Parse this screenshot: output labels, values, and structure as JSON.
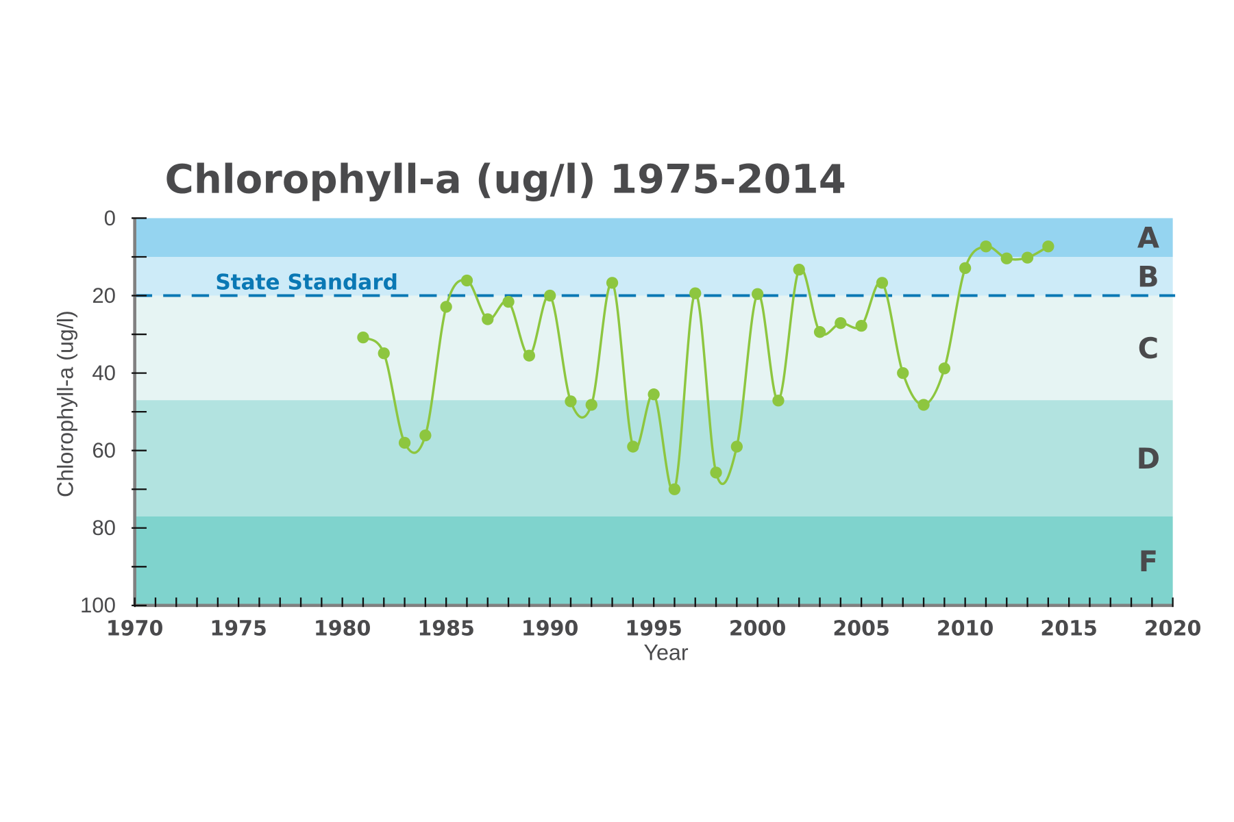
{
  "chart_data": {
    "type": "line",
    "title": "Chlorophyll-a (ug/l) 1975-2014",
    "xlabel": "Year",
    "ylabel": "Chlorophyll-a (ug/l)",
    "xlim": [
      1970,
      2020
    ],
    "ylim": [
      0,
      100
    ],
    "y_inverted": true,
    "x_ticks": [
      1970,
      1975,
      1980,
      1985,
      1990,
      1995,
      2000,
      2005,
      2010,
      2015,
      2020
    ],
    "y_ticks": [
      0,
      20,
      40,
      60,
      80,
      100
    ],
    "grid": false,
    "line_color": "#8dc63f",
    "grade_bands": [
      {
        "label": "A",
        "from": 0,
        "to": 10,
        "color": "#95d4f0"
      },
      {
        "label": "B",
        "from": 10,
        "to": 20,
        "color": "#cdebf8"
      },
      {
        "label": "C",
        "from": 20,
        "to": 47,
        "color": "#e6f4f3"
      },
      {
        "label": "D",
        "from": 47,
        "to": 77,
        "color": "#b2e3e0"
      },
      {
        "label": "F",
        "from": 77,
        "to": 100,
        "color": "#7fd3cd"
      }
    ],
    "reference_line": {
      "label": "State Standard",
      "value": 20,
      "color": "#0a78b4"
    },
    "x": [
      1981,
      1982,
      1983,
      1984,
      1985,
      1986,
      1987,
      1988,
      1989,
      1990,
      1991,
      1992,
      1993,
      1994,
      1995,
      1996,
      1997,
      1998,
      1999,
      2000,
      2001,
      2002,
      2003,
      2004,
      2005,
      2006,
      2007,
      2008,
      2009,
      2010,
      2011,
      2012,
      2013,
      2014
    ],
    "values": [
      30.8,
      34.9,
      58,
      56.1,
      22.9,
      16.1,
      26.1,
      21.6,
      35.5,
      20,
      47.3,
      48.2,
      16.7,
      59,
      45.5,
      70,
      19.4,
      65.7,
      59,
      19.6,
      47.1,
      13.3,
      29.4,
      27.1,
      27.8,
      16.7,
      40,
      48.2,
      38.8,
      12.9,
      7.3,
      10.4,
      10.2,
      7.3
    ]
  }
}
